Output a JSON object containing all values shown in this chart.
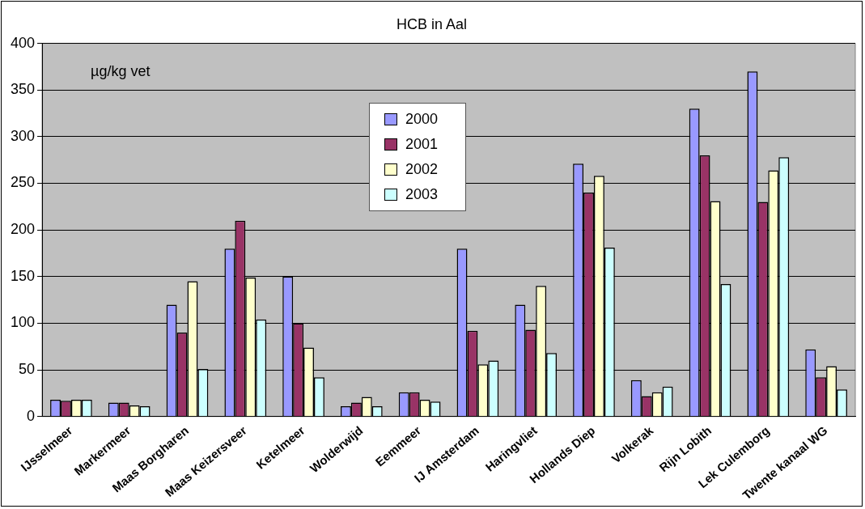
{
  "chart_data": {
    "type": "bar",
    "title": "HCB in Aal",
    "annotations": [
      "µg/kg vet"
    ],
    "categories": [
      "IJsselmeer",
      "Markermeer",
      "Maas Borgharen",
      "Maas Keizersveer",
      "Ketelmeer",
      "Wolderwijd",
      "Eemmeer",
      "IJ Amsterdam",
      "Haringvliet",
      "Hollands Diep",
      "Volkerak",
      "Rijn Lobith",
      "Lek Culemborg",
      "Twente kanaal WG"
    ],
    "series": [
      {
        "name": "2000",
        "color": "#9999ff",
        "values": [
          18,
          15,
          120,
          180,
          150,
          11,
          26,
          180,
          120,
          271,
          39,
          330,
          370,
          72
        ]
      },
      {
        "name": "2001",
        "color": "#993366",
        "values": [
          17,
          15,
          90,
          210,
          100,
          15,
          26,
          92,
          93,
          240,
          22,
          280,
          230,
          42
        ]
      },
      {
        "name": "2002",
        "color": "#ffffcc",
        "values": [
          18,
          12,
          145,
          149,
          74,
          21,
          18,
          56,
          140,
          258,
          26,
          231,
          264,
          54
        ]
      },
      {
        "name": "2003",
        "color": "#ccffff",
        "values": [
          18,
          11,
          51,
          104,
          42,
          11,
          16,
          60,
          68,
          181,
          32,
          142,
          278,
          29
        ]
      }
    ],
    "ylim": [
      0,
      400
    ],
    "yticks": [
      0,
      50,
      100,
      150,
      200,
      250,
      300,
      350,
      400
    ],
    "grid": "y",
    "legend": "top"
  }
}
